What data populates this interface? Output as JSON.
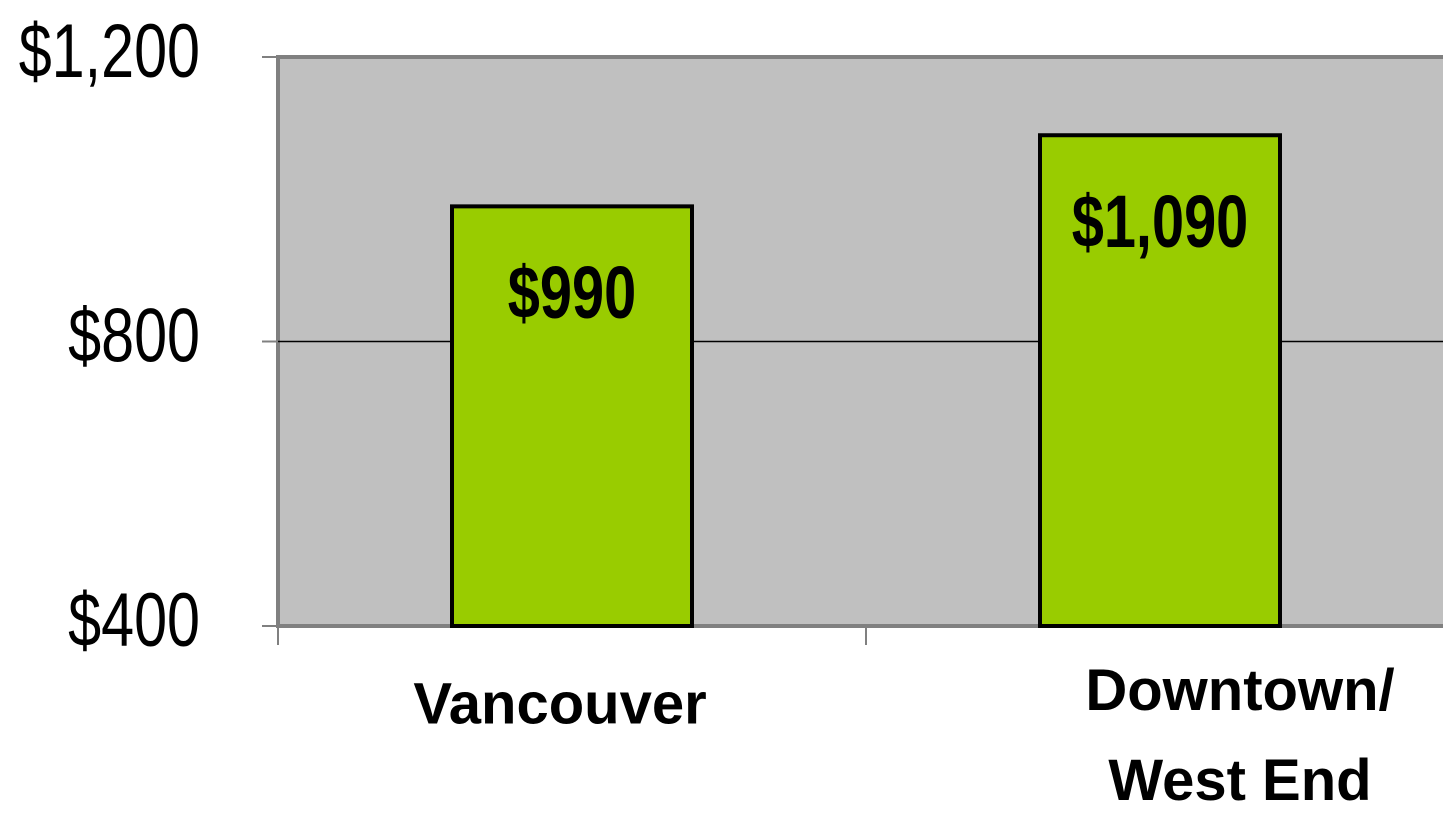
{
  "chart_data": {
    "type": "bar",
    "categories": [
      "Vancouver",
      "Downtown/\nWest End"
    ],
    "values": [
      990,
      1090
    ],
    "value_labels": [
      "$990",
      "$1,090"
    ],
    "color": "#99cc00",
    "ylim": [
      400,
      1200
    ],
    "yticks": [
      {
        "value": 400,
        "label": "$400"
      },
      {
        "value": 800,
        "label": "$800"
      },
      {
        "value": 1200,
        "label": "$1,200"
      }
    ],
    "grid": true
  }
}
